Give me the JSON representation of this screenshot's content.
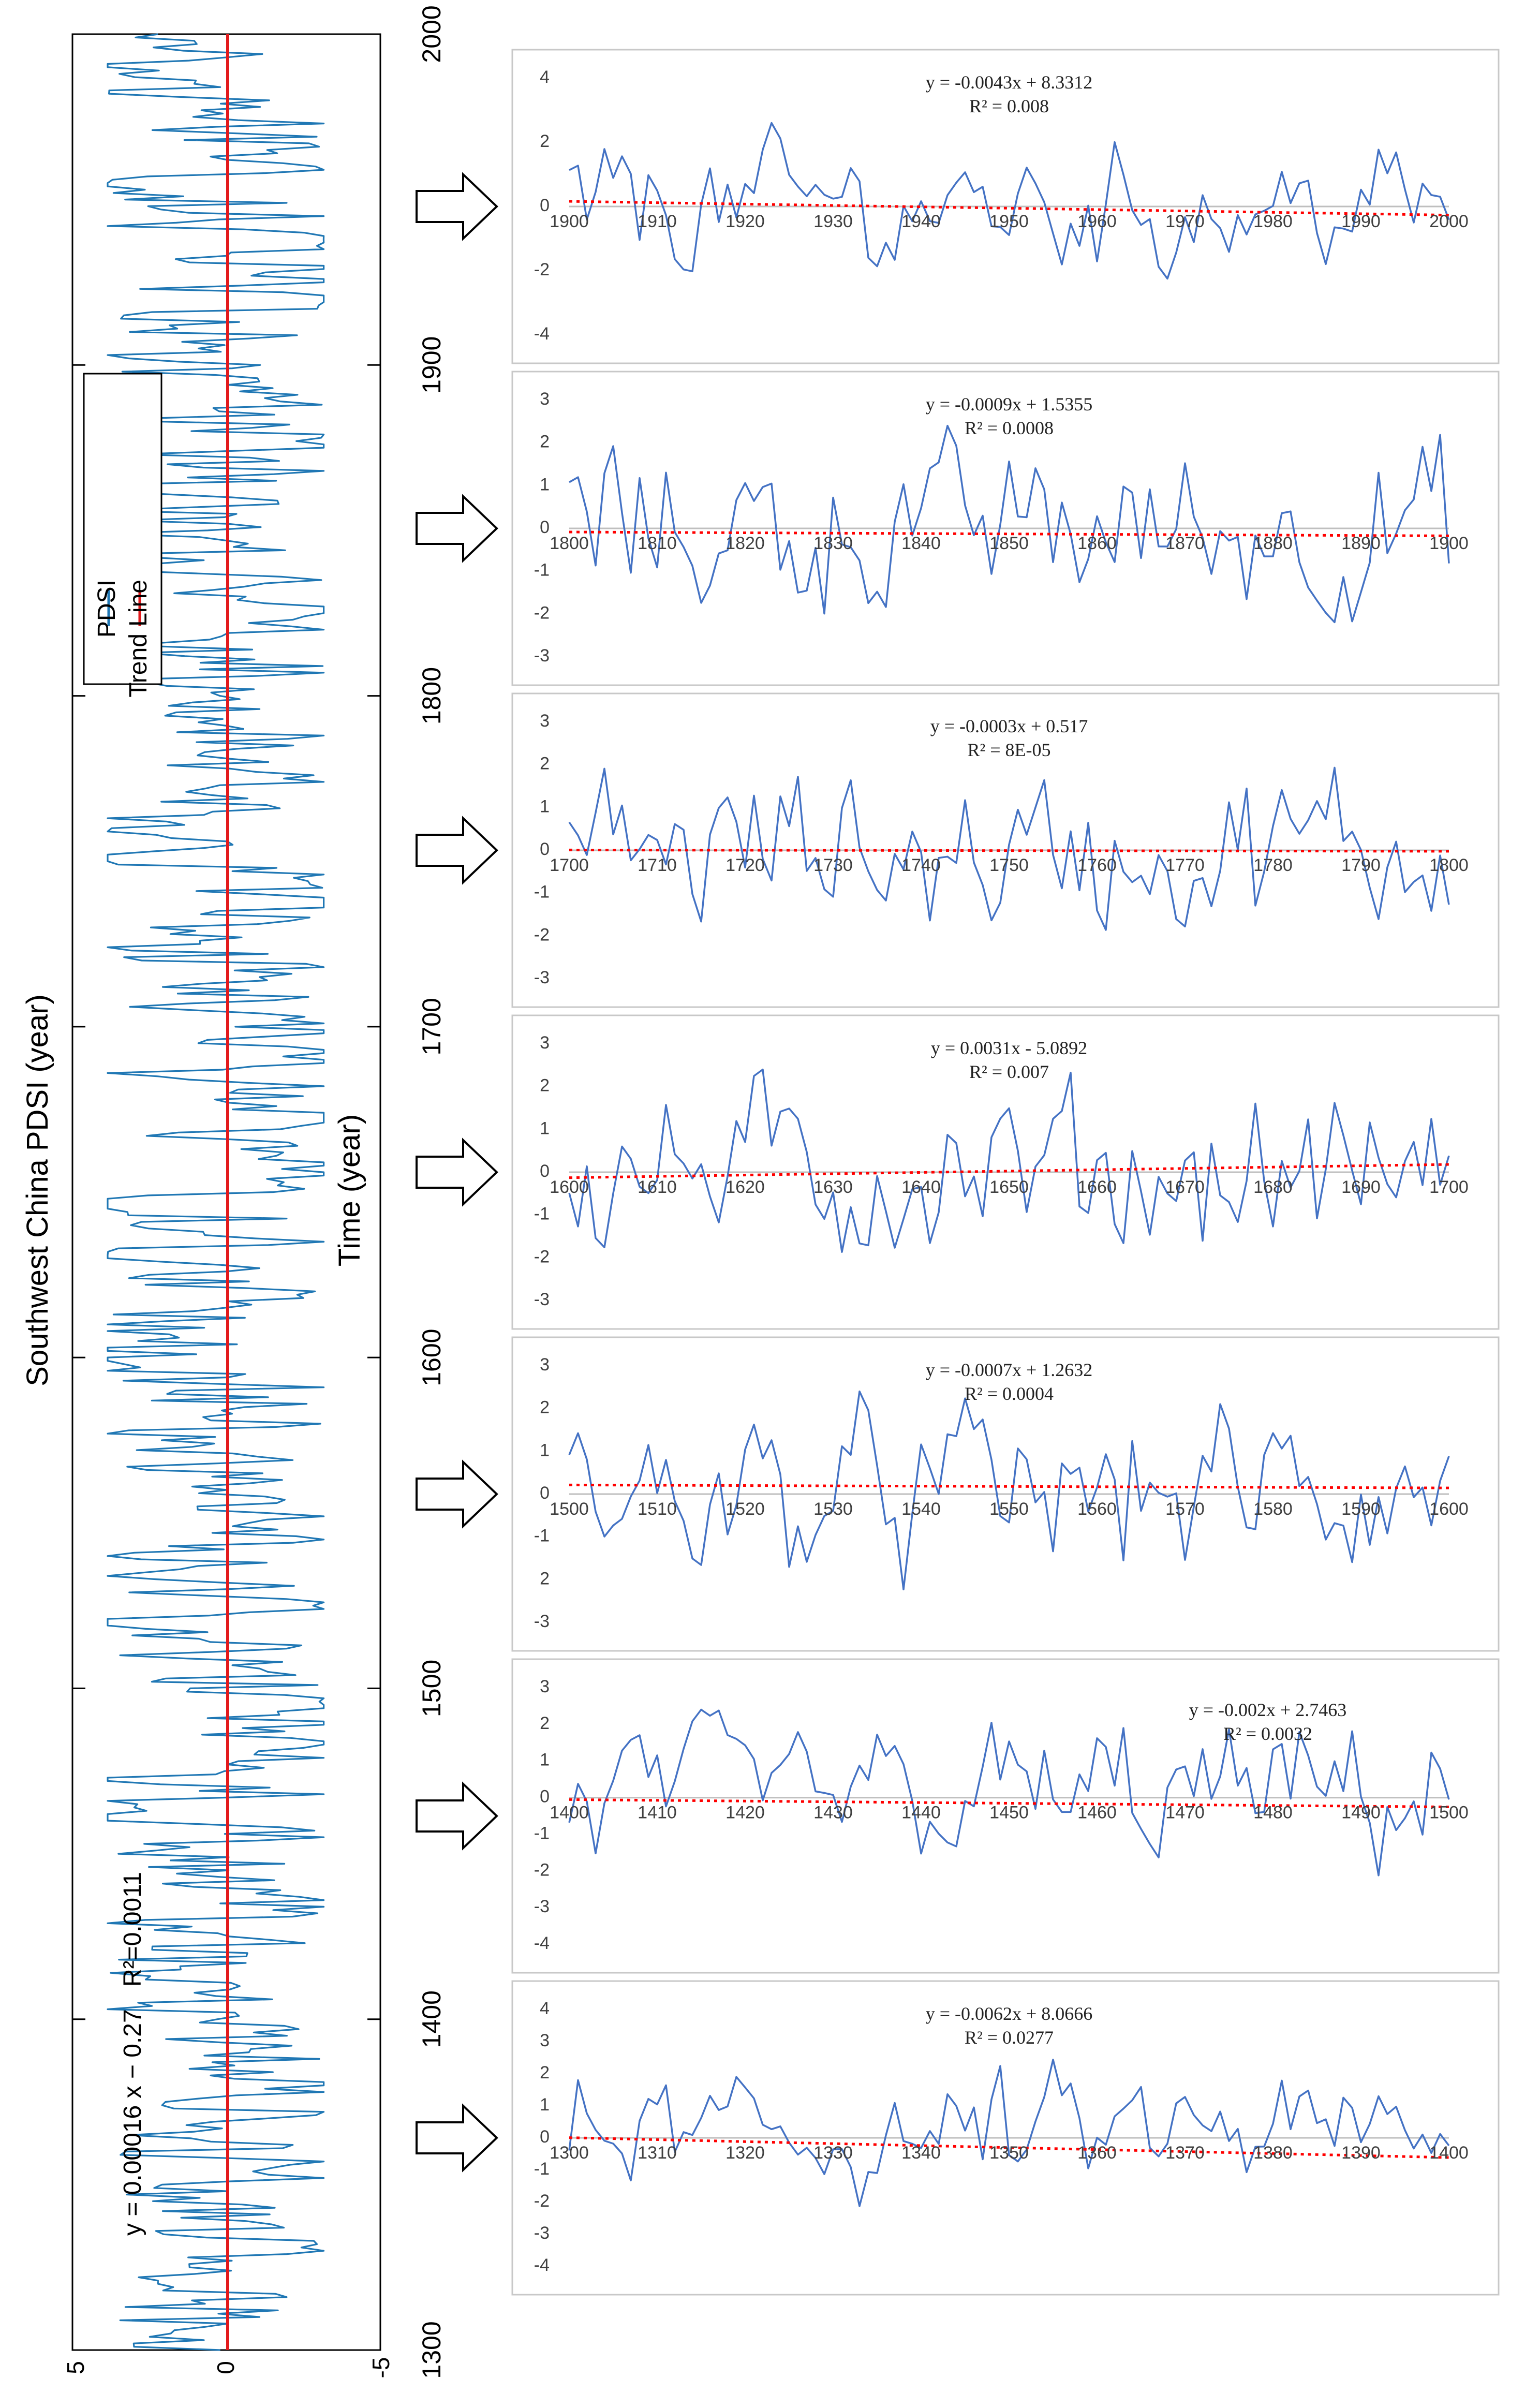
{
  "chart_data": [
    {
      "type": "line",
      "title": "Southwest China PDSI (year)",
      "xlabel": "Time (year)",
      "ylabel": "Southwest China PDSI (year)",
      "xlim": [
        1300,
        2000
      ],
      "ylim": [
        -5,
        5
      ],
      "x_ticks": [
        "1300",
        "1400",
        "1500",
        "1600",
        "1700",
        "1800",
        "1900",
        "2000"
      ],
      "y_ticks": [
        "5",
        "0",
        "-5"
      ],
      "legend": [
        "PDSI",
        "Trend Line"
      ],
      "series": [
        {
          "name": "PDSI",
          "color": "#1f77b4",
          "values": "annual values 1300-2000, oscillating roughly between -3 and +4"
        },
        {
          "name": "Trend Line",
          "color": "#e31a1c",
          "values": "y = 0.00016x - 0.27"
        }
      ],
      "equation": "y = 0.00016 x − 0.27",
      "r2": "R²=0.0011"
    },
    {
      "type": "line",
      "x_ticks": [
        "1900",
        "1910",
        "1920",
        "1930",
        "1940",
        "1950",
        "1960",
        "1970",
        "1980",
        "1990",
        "2000"
      ],
      "y_ticks": [
        "4",
        "2",
        "0",
        "-2",
        "-4"
      ],
      "ylim": [
        -4,
        4
      ],
      "equation": "y = -0.0043x + 8.3312",
      "r2": "R² = 0.008",
      "slope": -0.0043,
      "intercept": 8.3312
    },
    {
      "type": "line",
      "x_ticks": [
        "1800",
        "1810",
        "1820",
        "1830",
        "1840",
        "1850",
        "1860",
        "1870",
        "1880",
        "1890",
        "1900"
      ],
      "y_ticks": [
        "3",
        "2",
        "1",
        "0",
        "-1",
        "-2",
        "-3"
      ],
      "ylim": [
        -3,
        3
      ],
      "equation": "y = -0.0009x + 1.5355",
      "r2": "R² = 0.0008",
      "slope": -0.0009,
      "intercept": 1.5355
    },
    {
      "type": "line",
      "x_ticks": [
        "1700",
        "1710",
        "1720",
        "1730",
        "1740",
        "1750",
        "1760",
        "1770",
        "1780",
        "1790",
        "1800"
      ],
      "y_ticks": [
        "3",
        "2",
        "1",
        "0",
        "-1",
        "-2",
        "-3"
      ],
      "ylim": [
        -3,
        3
      ],
      "equation": "y = -0.0003x + 0.517",
      "r2": "R² = 8E-05",
      "slope": -0.0003,
      "intercept": 0.517
    },
    {
      "type": "line",
      "x_ticks": [
        "1600",
        "1610",
        "1620",
        "1630",
        "1640",
        "1650",
        "1660",
        "1670",
        "1680",
        "1690",
        "1700"
      ],
      "y_ticks": [
        "3",
        "2",
        "1",
        "0",
        "-1",
        "-2",
        "-3"
      ],
      "ylim": [
        -3,
        3
      ],
      "equation": "y = 0.0031x - 5.0892",
      "r2": "R² = 0.007",
      "slope": 0.0031,
      "intercept": -5.0892
    },
    {
      "type": "line",
      "x_ticks": [
        "1500",
        "1510",
        "1520",
        "1530",
        "1540",
        "1550",
        "1560",
        "1570",
        "1580",
        "1590",
        "1600"
      ],
      "y_ticks": [
        "3",
        "2",
        "1",
        "0",
        "-1",
        "2",
        "-3"
      ],
      "ylim": [
        -3,
        3
      ],
      "equation": "y = -0.0007x + 1.2632",
      "r2": "R² = 0.0004",
      "slope": -0.0007,
      "intercept": 1.2632
    },
    {
      "type": "line",
      "x_ticks": [
        "1400",
        "1410",
        "1420",
        "1430",
        "1440",
        "1450",
        "1460",
        "1470",
        "1480",
        "1490",
        "1500"
      ],
      "y_ticks": [
        "3",
        "2",
        "1",
        "0",
        "-1",
        "-2",
        "-3",
        "-4"
      ],
      "ylim": [
        -4,
        3
      ],
      "equation": "y = -0.002x + 2.7463",
      "r2": "R² = 0.0032",
      "slope": -0.002,
      "intercept": 2.7463
    },
    {
      "type": "line",
      "x_ticks": [
        "1300",
        "1310",
        "1320",
        "1330",
        "1340",
        "1350",
        "1360",
        "1370",
        "1380",
        "1390",
        "1400"
      ],
      "y_ticks": [
        "4",
        "3",
        "2",
        "1",
        "0",
        "-1",
        "-2",
        "-3",
        "-4"
      ],
      "ylim": [
        -4,
        4
      ],
      "equation": "y = -0.0062x + 8.0666",
      "r2": "R² = 0.0277",
      "slope": -0.0062,
      "intercept": 8.0666
    }
  ],
  "colors": {
    "pdsi": "#1f77b4",
    "trend": "#e31a1c",
    "series": "#4472c4",
    "dotted_trend": "#ff0000",
    "zero": "#bfbfbf",
    "frame": "#c8c8c8"
  }
}
